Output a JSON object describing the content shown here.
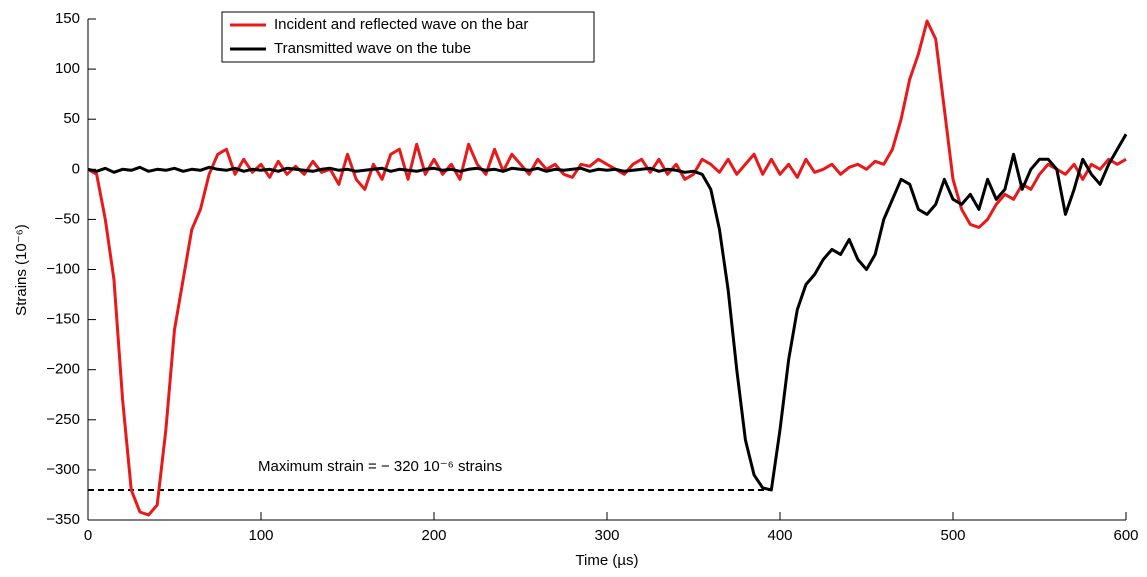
{
  "chart_data": {
    "type": "line",
    "xlabel": "Time (µs)",
    "ylabel": "Strains (10⁻⁶)",
    "annotation": "Maximum strain = − 320  10⁻⁶ strains",
    "reference_line": {
      "y": -320,
      "x": [
        0,
        395
      ]
    },
    "xlim": [
      0,
      600
    ],
    "ylim": [
      -350,
      150
    ],
    "xticks": [
      0,
      100,
      200,
      300,
      400,
      500,
      600
    ],
    "yticks": [
      150,
      100,
      50,
      0,
      {
        "value": -50,
        "label": "−50"
      },
      {
        "value": -100,
        "label": "−100"
      },
      {
        "value": -150,
        "label": "−150"
      },
      {
        "value": -200,
        "label": "−200"
      },
      {
        "value": -250,
        "label": "−250"
      },
      {
        "value": -300,
        "label": "−300"
      },
      {
        "value": -350,
        "label": "−350"
      }
    ],
    "x": [
      0,
      5,
      10,
      15,
      20,
      25,
      30,
      35,
      40,
      45,
      50,
      55,
      60,
      65,
      70,
      75,
      80,
      85,
      90,
      95,
      100,
      105,
      110,
      115,
      120,
      125,
      130,
      135,
      140,
      145,
      150,
      155,
      160,
      165,
      170,
      175,
      180,
      185,
      190,
      195,
      200,
      205,
      210,
      215,
      220,
      225,
      230,
      235,
      240,
      245,
      250,
      255,
      260,
      265,
      270,
      275,
      280,
      285,
      290,
      295,
      300,
      305,
      310,
      315,
      320,
      325,
      330,
      335,
      340,
      345,
      350,
      355,
      360,
      365,
      370,
      375,
      380,
      385,
      390,
      395,
      400,
      405,
      410,
      415,
      420,
      425,
      430,
      435,
      440,
      445,
      450,
      455,
      460,
      465,
      470,
      475,
      480,
      485,
      490,
      495,
      500,
      505,
      510,
      515,
      520,
      525,
      530,
      535,
      540,
      545,
      550,
      555,
      560,
      565,
      570,
      575,
      580,
      585,
      590,
      595,
      600
    ],
    "series": [
      {
        "name": "Incident and reflected wave on the bar",
        "color": "#e8191b",
        "values": [
          0,
          -5,
          -50,
          -110,
          -230,
          -320,
          -342,
          -345,
          -335,
          -260,
          -160,
          -110,
          -60,
          -40,
          -5,
          15,
          20,
          -5,
          10,
          -3,
          5,
          -8,
          8,
          -5,
          3,
          -5,
          8,
          -3,
          0,
          -15,
          15,
          -10,
          -20,
          5,
          -10,
          15,
          20,
          -10,
          25,
          -5,
          10,
          -5,
          5,
          -10,
          25,
          5,
          -5,
          20,
          -2,
          15,
          5,
          -5,
          10,
          0,
          5,
          -5,
          -8,
          5,
          3,
          10,
          5,
          0,
          -5,
          5,
          10,
          -3,
          10,
          -5,
          5,
          -10,
          -5,
          10,
          5,
          -3,
          10,
          -5,
          5,
          15,
          -5,
          10,
          -5,
          5,
          -8,
          10,
          -3,
          0,
          5,
          -5,
          2,
          5,
          0,
          8,
          5,
          20,
          50,
          90,
          115,
          148,
          130,
          60,
          -10,
          -40,
          -55,
          -58,
          -50,
          -35,
          -25,
          -30,
          -15,
          -20,
          -5,
          5,
          0,
          -5,
          5,
          -10,
          5,
          0,
          10,
          5,
          10
        ]
      },
      {
        "name": "Transmitted wave on the tube",
        "color": "#000000",
        "values": [
          0,
          -2,
          1,
          -3,
          0,
          -1,
          2,
          -2,
          0,
          -1,
          1,
          -2,
          0,
          -1,
          2,
          0,
          -1,
          1,
          -2,
          0,
          -1,
          0,
          -2,
          1,
          0,
          -1,
          -2,
          0,
          1,
          -1,
          0,
          -2,
          -1,
          0,
          1,
          -2,
          0,
          -1,
          -2,
          0,
          1,
          -1,
          0,
          -2,
          0,
          1,
          -1,
          0,
          -2,
          1,
          0,
          -1,
          1,
          -2,
          0,
          -1,
          0,
          1,
          -2,
          0,
          -1,
          0,
          -2,
          -1,
          0,
          1,
          -2,
          0,
          -1,
          -3,
          -2,
          -5,
          -20,
          -60,
          -120,
          -200,
          -270,
          -305,
          -318,
          -320,
          -260,
          -190,
          -140,
          -115,
          -105,
          -90,
          -80,
          -85,
          -70,
          -90,
          -100,
          -85,
          -50,
          -30,
          -10,
          -15,
          -40,
          -45,
          -35,
          -10,
          -30,
          -35,
          -25,
          -40,
          -10,
          -30,
          -20,
          15,
          -20,
          0,
          10,
          10,
          0,
          -45,
          -20,
          10,
          -5,
          -15,
          5,
          20,
          35
        ]
      }
    ]
  }
}
